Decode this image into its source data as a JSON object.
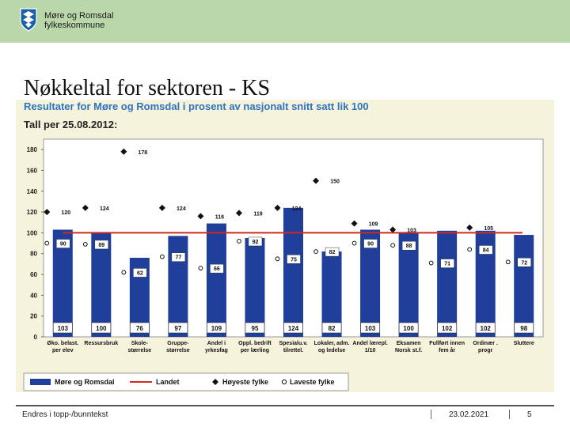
{
  "header": {
    "logo_line1": "Møre og Romsdal",
    "logo_line2": "fylkeskommune"
  },
  "slide": {
    "title": "Nøkkeltal for sektoren - KS"
  },
  "chart_data": {
    "type": "bar",
    "title": "Resultater for Møre og Romsdal i prosent av nasjonalt snitt satt lik 100",
    "subtitle": "Tall per 25.08.2012:",
    "categories": [
      [
        "Øko. belast.",
        "per elev"
      ],
      [
        "Ressursbruk"
      ],
      [
        "Skole-",
        "størrelse"
      ],
      [
        "Gruppe-",
        "størrelse"
      ],
      [
        "Andel i",
        "yrkesfag"
      ],
      [
        "Oppl. bedrift",
        "per lærling"
      ],
      [
        "Spesialu.v.",
        "tilrettel."
      ],
      [
        "Lokaler, adm.",
        "og ledelse"
      ],
      [
        "Andel lærepl.",
        "1/10"
      ],
      [
        "Eksamen",
        "Norsk st.f."
      ],
      [
        "Fullført innen",
        "fem år"
      ],
      [
        "Ordinær .",
        "progr"
      ],
      [
        "Sluttere"
      ]
    ],
    "yticks": [
      0,
      20,
      40,
      60,
      80,
      100,
      120,
      140,
      160,
      180
    ],
    "ylim": [
      0,
      190
    ],
    "landet": 100,
    "series": [
      {
        "name": "Møre og Romsdal",
        "values": [
          103,
          100,
          76,
          97,
          109,
          95,
          124,
          82,
          103,
          100,
          102,
          102,
          98
        ]
      },
      {
        "name": "Høyeste fylke",
        "values": [
          120,
          124,
          178,
          124,
          116,
          119,
          124,
          150,
          109,
          103,
          null,
          105,
          null
        ]
      },
      {
        "name": "Laveste fylke",
        "values": [
          90,
          89,
          62,
          77,
          66,
          92,
          75,
          82,
          90,
          88,
          71,
          84,
          72
        ]
      }
    ],
    "legend": [
      "Møre og Romsdal",
      "Landet",
      "Høyeste fylke",
      "Laveste fylke"
    ],
    "colors": {
      "bar": "#1f3f9a",
      "landet": "#d02a20",
      "marker": "#111111",
      "panel": "#f6f3dc",
      "title": "#2c73c0"
    }
  },
  "footer": {
    "text": "Endres i topp-/bunntekst",
    "date": "23.02.2021",
    "page": "5"
  }
}
